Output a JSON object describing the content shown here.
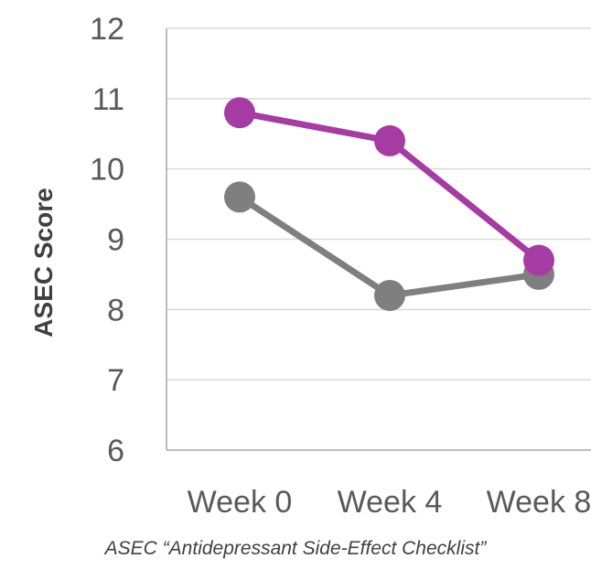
{
  "chart_data": {
    "type": "line",
    "categories": [
      "Week 0",
      "Week 4",
      "Week 8"
    ],
    "series": [
      {
        "values": [
          10.8,
          10.4,
          8.7
        ],
        "color": "#a53ba3"
      },
      {
        "values": [
          9.6,
          8.2,
          8.5
        ],
        "color": "#7f7f7f"
      }
    ],
    "ylabel": "ASEC Score",
    "ylim": [
      6,
      12
    ],
    "yticks": [
      6,
      7,
      8,
      9,
      10,
      11,
      12
    ],
    "grid": "horizontal",
    "gridColor": "#d9d9d9",
    "axisColor": "#a6a6a6"
  },
  "caption": "ASEC “Antidepressant Side-Effect Checklist”"
}
